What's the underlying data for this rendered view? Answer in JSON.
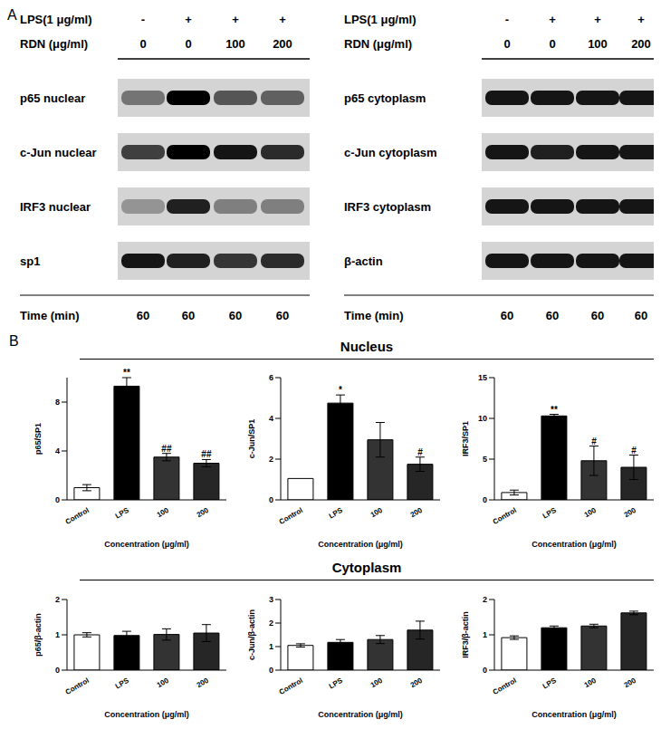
{
  "panels": {
    "A": {
      "label": "A",
      "blots": [
        {
          "treatments": [
            {
              "label": "LPS(1 μg/ml)",
              "values": [
                "-",
                "+",
                "+",
                "+"
              ]
            },
            {
              "label": "RDN (μg/ml)",
              "values": [
                0,
                0,
                100,
                200
              ]
            }
          ],
          "rows": [
            {
              "label": "p65 nuclear",
              "intensity": [
                0.45,
                1.0,
                0.6,
                0.55
              ]
            },
            {
              "label": "c-Jun nuclear",
              "intensity": [
                0.7,
                1.0,
                0.9,
                0.8
              ]
            },
            {
              "label": "IRF3 nuclear",
              "intensity": [
                0.3,
                0.85,
                0.4,
                0.4
              ]
            },
            {
              "label": "sp1",
              "intensity": [
                0.9,
                0.85,
                0.75,
                0.8
              ]
            }
          ],
          "time": {
            "label": "Time (min)",
            "values": [
              60,
              60,
              60,
              60
            ]
          }
        },
        {
          "treatments": [
            {
              "label": "LPS(1 μg/ml)",
              "values": [
                "-",
                "+",
                "+",
                "+"
              ]
            },
            {
              "label": "RDN (μg/ml)",
              "values": [
                0,
                0,
                100,
                200
              ]
            }
          ],
          "rows": [
            {
              "label": "p65 cytoplasm",
              "intensity": [
                0.9,
                0.9,
                0.9,
                0.9
              ]
            },
            {
              "label": "c-Jun cytoplasm",
              "intensity": [
                0.9,
                0.85,
                0.9,
                0.9
              ]
            },
            {
              "label": "IRF3 cytoplasm",
              "intensity": [
                0.9,
                0.9,
                0.9,
                0.9
              ]
            },
            {
              "label": "β-actin",
              "intensity": [
                0.9,
                0.9,
                0.9,
                0.9
              ]
            }
          ],
          "time": {
            "label": "Time (min)",
            "values": [
              60,
              60,
              60,
              60
            ]
          }
        }
      ]
    },
    "B": {
      "label": "B",
      "sections": [
        "Nucleus",
        "Cytoplasm"
      ]
    }
  },
  "chart_data": [
    {
      "type": "bar",
      "y_label": "p65/SP1",
      "x_label": "Concentration (μg/ml)",
      "categories": [
        "Control",
        "LPS",
        "100",
        "200"
      ],
      "values": [
        1.0,
        9.3,
        3.5,
        3.0
      ],
      "errors": [
        0.25,
        0.7,
        0.3,
        0.3
      ],
      "annotations": [
        null,
        "**",
        "##",
        "##"
      ],
      "colors": [
        "#ffffff",
        "#000000",
        "#333333",
        "#262626"
      ],
      "ylim": [
        0,
        10
      ],
      "yticks": [
        0,
        4,
        8
      ]
    },
    {
      "type": "bar",
      "y_label": "c-Jun/SP1",
      "x_label": "Concentration (μg/ml)",
      "categories": [
        "Control",
        "LPS",
        "100",
        "200"
      ],
      "values": [
        1.05,
        4.75,
        2.95,
        1.75
      ],
      "errors": [
        0,
        0.4,
        0.85,
        0.35
      ],
      "annotations": [
        null,
        "*",
        null,
        "#"
      ],
      "colors": [
        "#ffffff",
        "#000000",
        "#333333",
        "#262626"
      ],
      "ylim": [
        0,
        6
      ],
      "yticks": [
        0,
        2,
        4,
        6
      ]
    },
    {
      "type": "bar",
      "y_label": "IRF3/SP1",
      "x_label": "Concentration (μg/ml)",
      "categories": [
        "Control",
        "LPS",
        "100",
        "200"
      ],
      "values": [
        0.9,
        10.3,
        4.8,
        4.0
      ],
      "errors": [
        0.3,
        0.2,
        1.8,
        1.5
      ],
      "annotations": [
        null,
        "**",
        "#",
        "#"
      ],
      "colors": [
        "#ffffff",
        "#000000",
        "#333333",
        "#262626"
      ],
      "ylim": [
        0,
        15
      ],
      "yticks": [
        0,
        5,
        10,
        15
      ]
    },
    {
      "type": "bar",
      "y_label": "p65/β-actin",
      "x_label": "Concentration (μg/ml)",
      "categories": [
        "Control",
        "LPS",
        "100",
        "200"
      ],
      "values": [
        1.0,
        0.98,
        1.01,
        1.05
      ],
      "errors": [
        0.06,
        0.12,
        0.16,
        0.24
      ],
      "annotations": [
        null,
        null,
        null,
        null
      ],
      "colors": [
        "#ffffff",
        "#000000",
        "#333333",
        "#262626"
      ],
      "ylim": [
        0,
        2
      ],
      "yticks": [
        0,
        1,
        2
      ]
    },
    {
      "type": "bar",
      "y_label": "c-Jun/β-actin",
      "x_label": "Concentration (μg/ml)",
      "categories": [
        "Control",
        "LPS",
        "100",
        "200"
      ],
      "values": [
        1.05,
        1.18,
        1.3,
        1.7
      ],
      "errors": [
        0.07,
        0.12,
        0.17,
        0.38
      ],
      "annotations": [
        null,
        null,
        null,
        null
      ],
      "colors": [
        "#ffffff",
        "#000000",
        "#333333",
        "#262626"
      ],
      "ylim": [
        0,
        3
      ],
      "yticks": [
        0,
        1,
        2,
        3
      ]
    },
    {
      "type": "bar",
      "y_label": "IRF3/β-actin",
      "x_label": "Concentration (μg/ml)",
      "categories": [
        "Control",
        "LPS",
        "100",
        "200"
      ],
      "values": [
        0.92,
        1.2,
        1.25,
        1.62
      ],
      "errors": [
        0.05,
        0.05,
        0.05,
        0.05
      ],
      "annotations": [
        null,
        null,
        null,
        null
      ],
      "colors": [
        "#ffffff",
        "#000000",
        "#333333",
        "#262626"
      ],
      "ylim": [
        0,
        2
      ],
      "yticks": [
        0,
        1,
        2
      ]
    }
  ]
}
